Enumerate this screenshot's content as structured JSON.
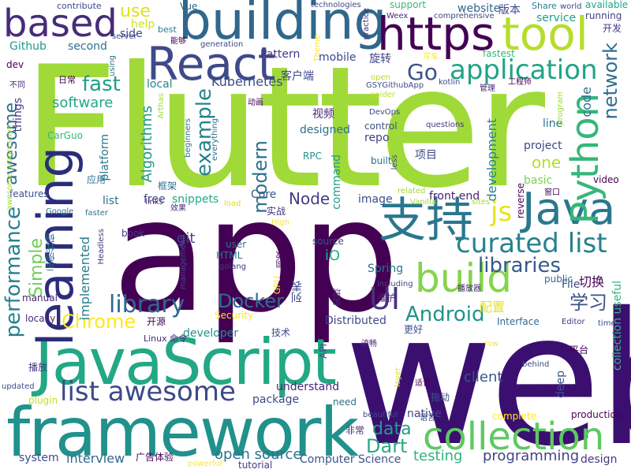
{
  "cloud": {
    "words": [
      {
        "text": "web",
        "color": "#3b0f70"
      },
      {
        "text": "app",
        "color": "#440154"
      },
      {
        "text": "Flutter",
        "color": "#a0da39"
      },
      {
        "text": "framework",
        "color": "#21918c"
      },
      {
        "text": "JavaScript",
        "color": "#22a884"
      },
      {
        "text": "building",
        "color": "#30678d"
      },
      {
        "text": "React",
        "color": "#3e4a89"
      },
      {
        "text": "based",
        "color": "#472c7a"
      },
      {
        "text": "https",
        "color": "#440154"
      },
      {
        "text": "tool",
        "color": "#b5de2b"
      },
      {
        "text": "learning",
        "color": "#2b2d7b"
      },
      {
        "text": "Java",
        "color": "#2a788e"
      },
      {
        "text": "支持",
        "color": "#2a768e"
      },
      {
        "text": "collection",
        "color": "#5ec962"
      },
      {
        "text": "build",
        "color": "#84d44b"
      },
      {
        "text": "Python",
        "color": "#35b779"
      },
      {
        "text": "application",
        "color": "#20a486"
      },
      {
        "text": "list awesome",
        "color": "#3e4989"
      },
      {
        "text": "curated list",
        "color": "#26828e"
      },
      {
        "text": "UI",
        "color": "#46327e"
      },
      {
        "text": "Android",
        "color": "#20938c"
      },
      {
        "text": "library",
        "color": "#31688e"
      },
      {
        "text": "libraries",
        "color": "#375a8c"
      },
      {
        "text": "example",
        "color": "#25838e"
      },
      {
        "text": "performance",
        "color": "#27808e"
      },
      {
        "text": "Go",
        "color": "#3b528b"
      },
      {
        "text": "js",
        "color": "#e5e419"
      },
      {
        "text": "modern",
        "color": "#2c718e"
      },
      {
        "text": "Docker",
        "color": "#2d6f8e"
      },
      {
        "text": "network",
        "color": "#2e6e8e"
      },
      {
        "text": "Chrome",
        "color": "#fde725"
      },
      {
        "text": "Dart",
        "color": "#26ad81"
      },
      {
        "text": "data",
        "color": "#1f9e89"
      },
      {
        "text": "fast",
        "color": "#1fa088"
      },
      {
        "text": "awesome",
        "color": "#2f6c8e"
      },
      {
        "text": "Simple",
        "color": "#6ece58"
      },
      {
        "text": "学习",
        "color": "#3b528b"
      },
      {
        "text": "Node",
        "color": "#443b84"
      },
      {
        "text": "use",
        "color": "#dde318"
      },
      {
        "text": "open source",
        "color": "#2c728e"
      },
      {
        "text": "testing",
        "color": "#2eb37c"
      },
      {
        "text": "programming",
        "color": "#414487"
      },
      {
        "text": "Computer Science",
        "color": "#3b528b"
      },
      {
        "text": "interview",
        "color": "#31688e"
      },
      {
        "text": "Kubernetes",
        "color": "#3e4c8a"
      },
      {
        "text": "Algorithms",
        "color": "#1f988b"
      },
      {
        "text": "software",
        "color": "#22a884"
      },
      {
        "text": "platform",
        "color": "#2a788e"
      },
      {
        "text": "development",
        "color": "#25848e"
      },
      {
        "text": "code",
        "color": "#2d708e"
      },
      {
        "text": "one",
        "color": "#b5de2b"
      },
      {
        "text": "Core",
        "color": "#38588c"
      },
      {
        "text": "snippets",
        "color": "#22a884"
      },
      {
        "text": "free",
        "color": "#3e4989"
      },
      {
        "text": "list",
        "color": "#2c728e"
      },
      {
        "text": "implemented",
        "color": "#287d8e"
      },
      {
        "text": "iO",
        "color": "#2ab07f"
      },
      {
        "text": "Spring",
        "color": "#2c728e"
      },
      {
        "text": "Github",
        "color": "#1f9a8a"
      },
      {
        "text": "second",
        "color": "#2c728e"
      },
      {
        "text": "dev",
        "color": "#440154"
      },
      {
        "text": "side",
        "color": "#3f4889"
      },
      {
        "text": "help",
        "color": "#d0e11c"
      },
      {
        "text": "Vue",
        "color": "#31688e"
      },
      {
        "text": "best",
        "color": "#2a788e"
      },
      {
        "text": "support",
        "color": "#3aba76"
      },
      {
        "text": "website",
        "color": "#31688e"
      },
      {
        "text": "版本",
        "color": "#3e4a89"
      },
      {
        "text": "Share",
        "color": "#277f8e"
      },
      {
        "text": "available",
        "color": "#20a386"
      },
      {
        "text": "service",
        "color": "#1f9f88"
      },
      {
        "text": "running",
        "color": "#424086"
      },
      {
        "text": "开发",
        "color": "#443983"
      },
      {
        "text": "fastest",
        "color": "#35b779"
      },
      {
        "text": "旋转",
        "color": "#414487"
      },
      {
        "text": "客户端",
        "color": "#3e4989"
      },
      {
        "text": "mobile",
        "color": "#3e4989"
      },
      {
        "text": "Pattern",
        "color": "#453882"
      },
      {
        "text": "local",
        "color": "#25848e"
      },
      {
        "text": "日常",
        "color": "#440154"
      },
      {
        "text": "things",
        "color": "#443983"
      },
      {
        "text": "视频",
        "color": "#482475"
      },
      {
        "text": "repo",
        "color": "#424086"
      },
      {
        "text": "项目",
        "color": "#3e4a89"
      },
      {
        "text": "RPC",
        "color": "#21908d"
      },
      {
        "text": "designed",
        "color": "#2c728e"
      },
      {
        "text": "control",
        "color": "#3b528b"
      },
      {
        "text": "built",
        "color": "#2d708e"
      },
      {
        "text": "project",
        "color": "#3e4989"
      },
      {
        "text": "line",
        "color": "#2c728e"
      },
      {
        "text": "basic",
        "color": "#7ad151"
      },
      {
        "text": "video",
        "color": "#440154"
      },
      {
        "text": "reverse",
        "color": "#440154"
      },
      {
        "text": "image",
        "color": "#3e4a89"
      },
      {
        "text": "front end",
        "color": "#482173"
      },
      {
        "text": "command",
        "color": "#1f9e89"
      },
      {
        "text": "features",
        "color": "#3b528b"
      },
      {
        "text": "git",
        "color": "#3e4c8a"
      },
      {
        "text": "book",
        "color": "#453882"
      },
      {
        "text": "user",
        "color": "#2c728e"
      },
      {
        "text": "HTML",
        "color": "#2c728e"
      },
      {
        "text": "source",
        "color": "#3b528b"
      },
      {
        "text": "实战",
        "color": "#46327e"
      },
      {
        "text": "配置",
        "color": "#e5e419"
      },
      {
        "text": "切换",
        "color": "#440154"
      },
      {
        "text": "File",
        "color": "#3e4989"
      },
      {
        "text": "public",
        "color": "#2d708e"
      },
      {
        "text": "Security",
        "color": "#fde725"
      },
      {
        "text": "developer",
        "color": "#21918c"
      },
      {
        "text": "Distributed",
        "color": "#3e4989"
      },
      {
        "text": "understand",
        "color": "#482878"
      },
      {
        "text": "package",
        "color": "#3e4989"
      },
      {
        "text": "client",
        "color": "#39568c"
      },
      {
        "text": "deep",
        "color": "#3b528b"
      },
      {
        "text": "native",
        "color": "#3e4989"
      },
      {
        "text": "design",
        "color": "#443983"
      },
      {
        "text": "production",
        "color": "#440154"
      },
      {
        "text": "system",
        "color": "#3e4a89"
      },
      {
        "text": "tutorial",
        "color": "#443983"
      },
      {
        "text": "plugin",
        "color": "#c2df23"
      },
      {
        "text": "manual",
        "color": "#482173"
      },
      {
        "text": "locally",
        "color": "#482878"
      },
      {
        "text": "Interface",
        "color": "#31688e"
      },
      {
        "text": "更好",
        "color": "#3b528b"
      },
      {
        "text": "Editor",
        "color": "#453882"
      },
      {
        "text": "平台",
        "color": "#440154"
      },
      {
        "text": "collection useful",
        "color": "#35b779"
      },
      {
        "text": "维护",
        "color": "#482475"
      },
      {
        "text": "API",
        "color": "#3e4c8a"
      },
      {
        "text": "技术",
        "color": "#3e4989"
      },
      {
        "text": "开源",
        "color": "#440154"
      },
      {
        "text": "播放",
        "color": "#453882"
      },
      {
        "text": "广告",
        "color": "#440154"
      },
      {
        "text": "体验",
        "color": "#440154"
      },
      {
        "text": "列表",
        "color": "#3e4989"
      },
      {
        "text": "示例",
        "color": "#2c728e"
      },
      {
        "text": "代码",
        "color": "#2c728e"
      },
      {
        "text": "非常",
        "color": "#482878"
      },
      {
        "text": "拖动",
        "color": "#3b528b"
      },
      {
        "text": "Linux 命令",
        "color": "#482878"
      },
      {
        "text": "GPU",
        "color": "#fde725"
      },
      {
        "text": "Headless",
        "color": "#453882"
      },
      {
        "text": "awesome progressive",
        "color": "#9fda3a"
      },
      {
        "text": "contribute",
        "color": "#3e4989"
      },
      {
        "text": "technologies",
        "color": "#3e4989"
      },
      {
        "text": "comprehensive",
        "color": "#3e4989"
      },
      {
        "text": "questions",
        "color": "#453882"
      },
      {
        "text": "Weex",
        "color": "#482878"
      },
      {
        "text": "practice",
        "color": "#482878"
      },
      {
        "text": "generation",
        "color": "#3e4989"
      },
      {
        "text": "能够",
        "color": "#440154"
      },
      {
        "text": "server",
        "color": "#3e4989"
      },
      {
        "text": "using",
        "color": "#2c728e"
      },
      {
        "text": "Theme",
        "color": "#fde725"
      },
      {
        "text": "open",
        "color": "#b5de2b"
      },
      {
        "text": "GSYGithubApp",
        "color": "#3e4989"
      },
      {
        "text": "spider",
        "color": "#c2df23"
      },
      {
        "text": "kotlin",
        "color": "#3e4989"
      },
      {
        "text": "写车",
        "color": "#fde725"
      },
      {
        "text": "管理",
        "color": "#482878"
      },
      {
        "text": "工程师",
        "color": "#440154"
      },
      {
        "text": "DevOps",
        "color": "#3e4989"
      },
      {
        "text": "动画",
        "color": "#440154"
      },
      {
        "text": "Arthas",
        "color": "#a0da39"
      },
      {
        "text": "beginners",
        "color": "#2c728e"
      },
      {
        "text": "everything",
        "color": "#2c728e"
      },
      {
        "text": "框架",
        "color": "#2c728e"
      },
      {
        "text": "应用",
        "color": "#2c728e"
      },
      {
        "text": "less",
        "color": "#3e4989"
      },
      {
        "text": "related",
        "color": "#a0da39"
      },
      {
        "text": "Vanilla",
        "color": "#a0da39"
      },
      {
        "text": "sites",
        "color": "#a0da39"
      },
      {
        "text": "links",
        "color": "#482878"
      },
      {
        "text": "效果",
        "color": "#482878"
      },
      {
        "text": "faster",
        "color": "#2c728e"
      },
      {
        "text": "load",
        "color": "#dde318"
      },
      {
        "text": "Google",
        "color": "#2c728e"
      },
      {
        "text": "High",
        "color": "#fde725"
      },
      {
        "text": "golang",
        "color": "#453882"
      },
      {
        "text": "management",
        "color": "#3e4989"
      },
      {
        "text": "同款",
        "color": "#440154"
      },
      {
        "text": "实现",
        "color": "#482878"
      },
      {
        "text": "including",
        "color": "#3e4989"
      },
      {
        "text": "播放器",
        "color": "#482878"
      },
      {
        "text": "流畅",
        "color": "#482878"
      },
      {
        "text": "row",
        "color": "#fde725"
      },
      {
        "text": "behind",
        "color": "#3e4989"
      },
      {
        "text": "layer",
        "color": "#dde318"
      },
      {
        "text": "适合",
        "color": "#440154"
      },
      {
        "text": "语言",
        "color": "#3e4989"
      },
      {
        "text": "beautiful",
        "color": "#3e4989"
      },
      {
        "text": "complete",
        "color": "#fde725"
      },
      {
        "text": "need",
        "color": "#2c728e"
      },
      {
        "text": "powerful",
        "color": "#fde725"
      },
      {
        "text": "updated",
        "color": "#3e4989"
      },
      {
        "text": "不同",
        "color": "#482878"
      },
      {
        "text": "窗口",
        "color": "#440154"
      },
      {
        "text": "time",
        "color": "#3e4989"
      },
      {
        "text": "world",
        "color": "#3e4989"
      },
      {
        "text": "program",
        "color": "#a0da39"
      },
      {
        "text": "CarGuo",
        "color": "#35b779"
      }
    ]
  }
}
